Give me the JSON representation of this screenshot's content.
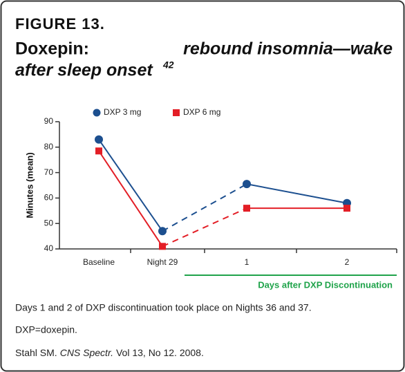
{
  "figure_label": "FIGURE 13.",
  "title_prefix": "Doxepin:",
  "title_italic_line1": "rebound insomnia—wake",
  "title_italic_line2": "after sleep onset",
  "title_superscript": "42",
  "chart_data": {
    "type": "line",
    "ylabel": "Minutes (mean)",
    "categories": [
      "Baseline",
      "Night 29",
      "1",
      "2"
    ],
    "group_label": "Days after DXP Discontinuation",
    "group_color": "#1fa34a",
    "series": [
      {
        "name": "DXP 3 mg",
        "color": "#1c4f8f",
        "marker": "circle",
        "values": [
          83,
          47,
          65.5,
          58
        ]
      },
      {
        "name": "DXP 6 mg",
        "color": "#e31e26",
        "marker": "square",
        "values": [
          78.5,
          41,
          56,
          56
        ]
      }
    ],
    "dashed_segments": [
      [
        1,
        2
      ]
    ],
    "ylim": [
      40,
      90
    ],
    "yticks": [
      40,
      50,
      60,
      70,
      80,
      90
    ]
  },
  "footnotes": [
    "Days 1 and 2 of DXP discontinuation took place on Nights 36 and 37.",
    "DXP=doxepin."
  ],
  "reference": {
    "author": "Stahl SM.",
    "journal": "CNS Spectr.",
    "details": "Vol 13, No 12. 2008."
  }
}
